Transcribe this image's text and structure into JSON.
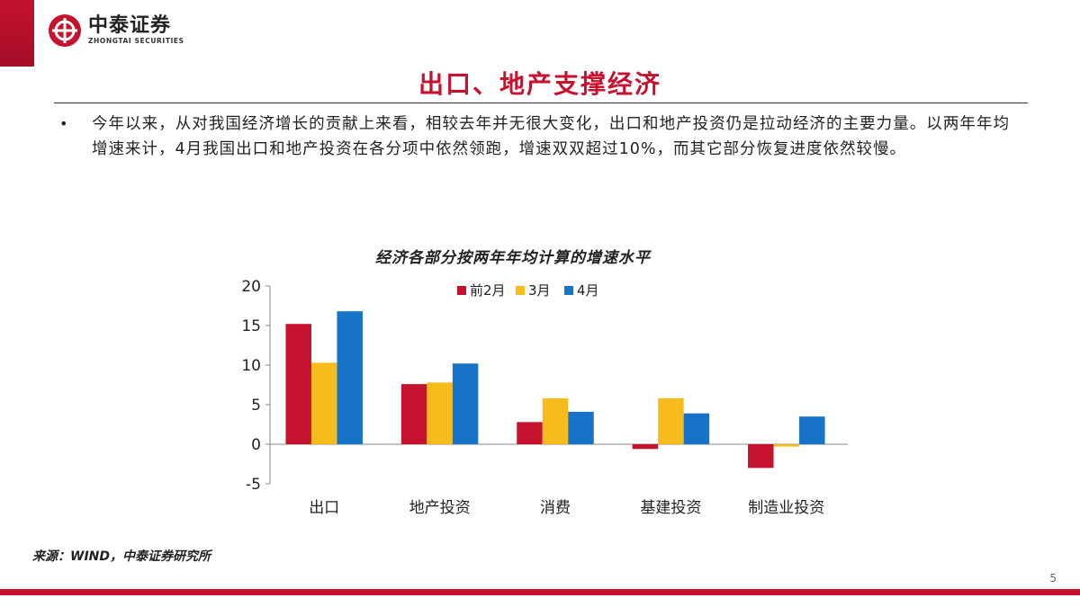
{
  "logo": {
    "name_cn": "中泰证券",
    "name_en": "ZHONGTAI SECURITIES"
  },
  "title": "出口、地产支撑经济",
  "bullet": "今年以来，从对我国经济增长的贡献上来看，相较去年并无很大变化，出口和地产投资仍是拉动经济的主要力量。以两年年均增速来计，4月我国出口和地产投资在各分项中依然领跑，增速双双超过10%，而其它部分恢复进度依然较慢。",
  "chart_data": {
    "type": "bar",
    "title": "经济各部分按两年年均计算的增速水平",
    "categories": [
      "出口",
      "地产投资",
      "消费",
      "基建投资",
      "制造业投资"
    ],
    "series": [
      {
        "name": "前2月",
        "color": "#c4122f",
        "values": [
          15.2,
          7.6,
          2.8,
          -0.6,
          -3.0
        ]
      },
      {
        "name": "3月",
        "color": "#f7bc1b",
        "values": [
          10.3,
          7.8,
          5.8,
          5.8,
          -0.3
        ]
      },
      {
        "name": "4月",
        "color": "#1673c8",
        "values": [
          16.8,
          10.2,
          4.1,
          3.9,
          3.5
        ]
      }
    ],
    "ylim": [
      -5,
      20
    ],
    "yticks": [
      -5,
      0,
      5,
      10,
      15,
      20
    ],
    "legend_position": "top",
    "grid": false
  },
  "source": "来源：WIND，中泰证券研究所",
  "page_number": "5",
  "colors": {
    "brand_red": "#c4122f"
  }
}
